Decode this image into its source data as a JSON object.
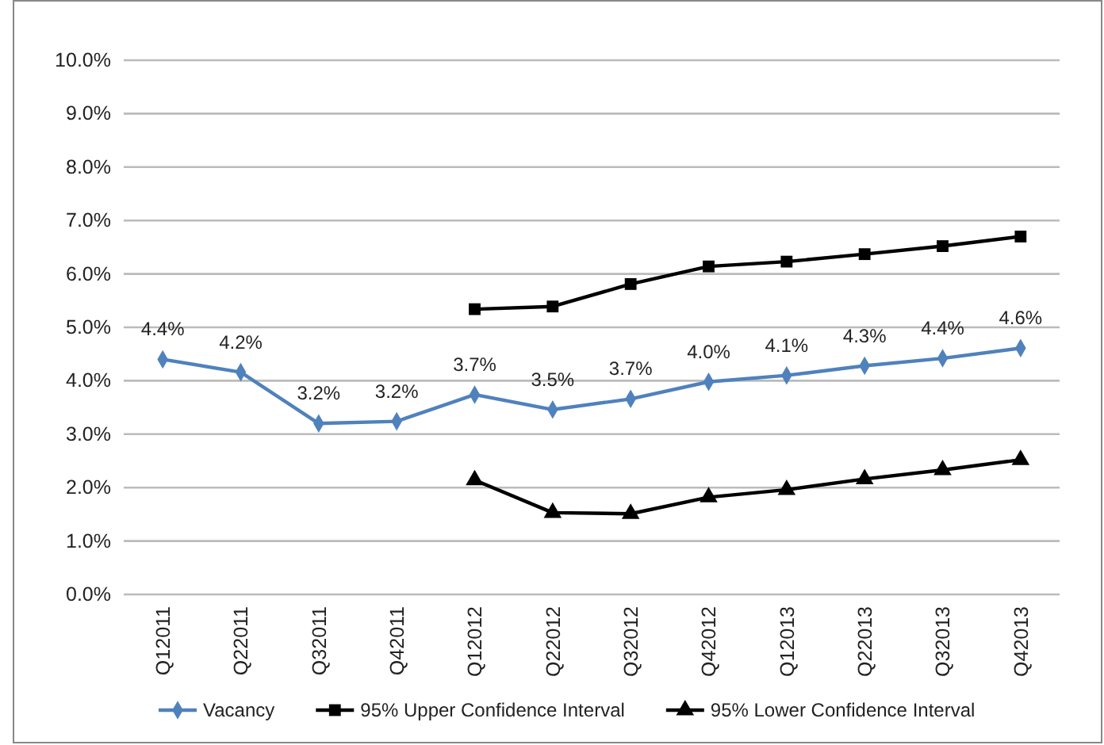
{
  "chart_data": {
    "type": "line",
    "categories": [
      "Q12011",
      "Q22011",
      "Q32011",
      "Q42011",
      "Q12012",
      "Q22012",
      "Q32012",
      "Q42012",
      "Q12013",
      "Q22013",
      "Q32013",
      "Q42013"
    ],
    "series": [
      {
        "name": "Vacancy",
        "color": "#4f81bd",
        "marker": "diamond",
        "values": [
          4.4,
          4.16,
          3.2,
          3.24,
          3.74,
          3.46,
          3.66,
          3.98,
          4.1,
          4.28,
          4.42,
          4.61
        ],
        "value_labels": [
          "4.4%",
          "4.2%",
          "3.2%",
          "3.2%",
          "3.7%",
          "3.5%",
          "3.7%",
          "4.0%",
          "4.1%",
          "4.3%",
          "4.4%",
          "4.6%"
        ]
      },
      {
        "name": "95% Upper Confidence Interval",
        "color": "#000000",
        "marker": "square",
        "values": [
          null,
          null,
          null,
          null,
          5.34,
          5.39,
          5.81,
          6.14,
          6.23,
          6.37,
          6.52,
          6.7
        ]
      },
      {
        "name": "95% Lower Confidence Interval",
        "color": "#000000",
        "marker": "triangle",
        "values": [
          null,
          null,
          null,
          null,
          2.14,
          1.53,
          1.51,
          1.82,
          1.96,
          2.16,
          2.33,
          2.52
        ]
      }
    ],
    "ylim": [
      0,
      10
    ],
    "yticks": [
      {
        "value": 0,
        "label": "0.0%"
      },
      {
        "value": 1,
        "label": "1.0%"
      },
      {
        "value": 2,
        "label": "2.0%"
      },
      {
        "value": 3,
        "label": "3.0%"
      },
      {
        "value": 4,
        "label": "4.0%"
      },
      {
        "value": 5,
        "label": "5.0%"
      },
      {
        "value": 6,
        "label": "6.0%"
      },
      {
        "value": 7,
        "label": "7.0%"
      },
      {
        "value": 8,
        "label": "8.0%"
      },
      {
        "value": 9,
        "label": "9.0%"
      },
      {
        "value": 10,
        "label": "10.0%"
      }
    ],
    "grid": "y",
    "legend": "bottom"
  }
}
